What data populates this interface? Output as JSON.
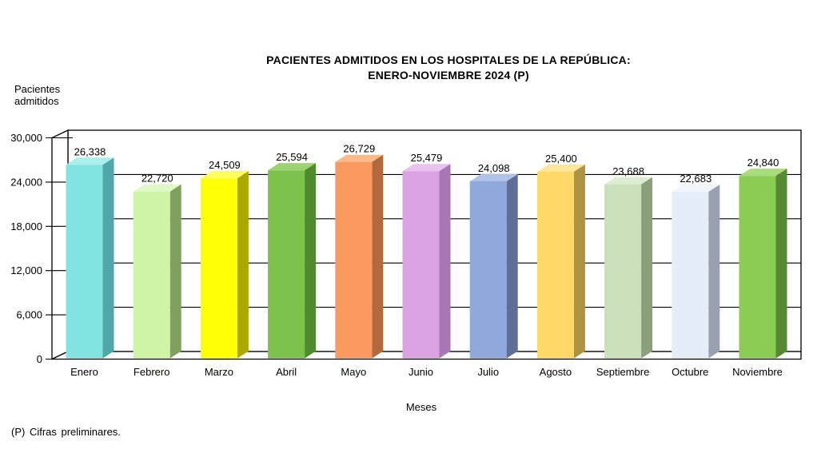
{
  "title": {
    "line1": "PACIENTES ADMITIDOS EN LOS HOSPITALES DE LA REPÚBLICA:",
    "line2": "ENERO-NOVIEMBRE 2024 (P)"
  },
  "y_axis": {
    "label_line1": "Pacientes",
    "label_line2": "admitidos",
    "tick_labels": [
      "0",
      "6,000",
      "12,000",
      "18,000",
      "24,000",
      "30,000"
    ]
  },
  "x_axis": {
    "title": "Meses"
  },
  "footnote": "(P) Cifras preliminares.",
  "chart_data": {
    "type": "bar",
    "style": "3d",
    "title": "PACIENTES ADMITIDOS EN LOS HOSPITALES DE LA REPÚBLICA: ENERO-NOVIEMBRE 2024 (P)",
    "xlabel": "Meses",
    "ylabel": "Pacientes admitidos",
    "ylim": [
      0,
      30000
    ],
    "ytick_interval": 6000,
    "grid": true,
    "legend": "none",
    "categories": [
      "Enero",
      "Febrero",
      "Marzo",
      "Abril",
      "Mayo",
      "Junio",
      "Julio",
      "Agosto",
      "Septiembre",
      "Octubre",
      "Noviembre"
    ],
    "values": [
      26338,
      22720,
      24509,
      25594,
      26729,
      25479,
      24098,
      25400,
      23688,
      22683,
      24840
    ],
    "value_labels": [
      "26,338",
      "22,720",
      "24,509",
      "25,594",
      "26,729",
      "25,479",
      "24,098",
      "25,400",
      "23,688",
      "22,683",
      "24,840"
    ],
    "bar_colors": [
      {
        "front": "#82E4E1",
        "top": "#ACEEEB",
        "side": "#50A8A6"
      },
      {
        "front": "#CDF5A5",
        "top": "#E0FAC7",
        "side": "#80A05F"
      },
      {
        "front": "#FFFF05",
        "top": "#FFFF60",
        "side": "#A9A900"
      },
      {
        "front": "#7DC24C",
        "top": "#9CD370",
        "side": "#4F8A2F"
      },
      {
        "front": "#FA9A60",
        "top": "#FCB98A",
        "side": "#B06A3C"
      },
      {
        "front": "#DCA3E2",
        "top": "#E9C2EE",
        "side": "#A978B2"
      },
      {
        "front": "#8FA9DC",
        "top": "#B0C2E8",
        "side": "#5F6E95"
      },
      {
        "front": "#FED967",
        "top": "#FEE79A",
        "side": "#AF9340"
      },
      {
        "front": "#C9E0BA",
        "top": "#DCEDD1",
        "side": "#8BA079"
      },
      {
        "front": "#E4EDF8",
        "top": "#F1F6FC",
        "side": "#98A1AF"
      },
      {
        "front": "#8BCD53",
        "top": "#A9DC7A",
        "side": "#578934"
      }
    ],
    "frame_color": "#000000",
    "wall_fill": "#ffffff",
    "label_color": "#000000"
  }
}
